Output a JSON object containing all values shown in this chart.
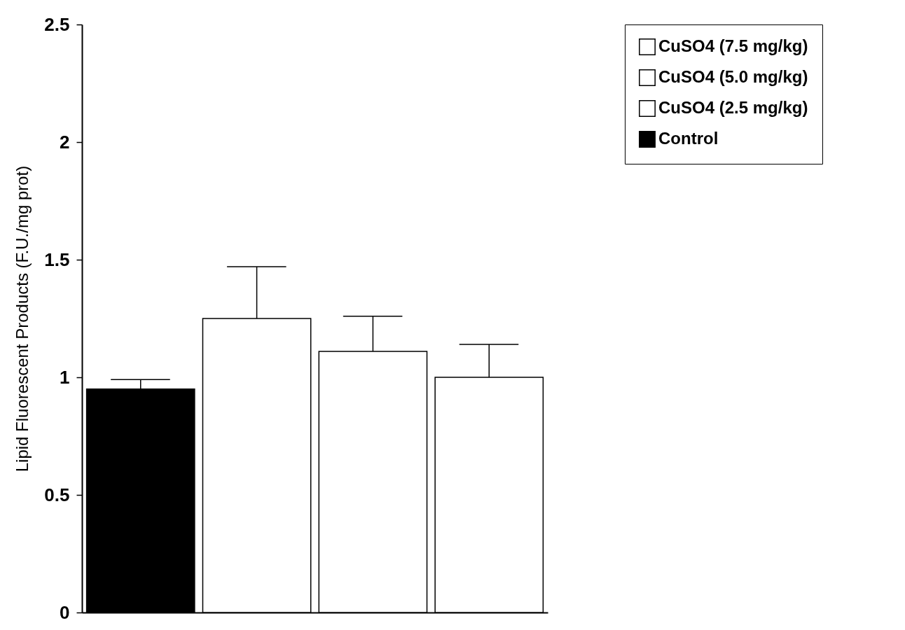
{
  "chart_data": {
    "type": "bar",
    "ylabel": "Lipid Fluorescent Products (F.U./mg prot)",
    "categories": [
      null,
      null,
      null,
      null
    ],
    "series": [
      {
        "name": "CuSO4 (7.5 mg/kg)",
        "color": "#ffffff",
        "values": [
          null,
          null,
          null,
          1.0
        ],
        "errors": [
          null,
          null,
          null,
          [
            1.0,
            1.14
          ]
        ]
      },
      {
        "name": "CuSO4 (5.0 mg/kg)",
        "color": "#ffffff",
        "values": [
          null,
          null,
          1.11,
          null
        ],
        "errors": [
          null,
          null,
          [
            1.11,
            1.26
          ],
          null
        ]
      },
      {
        "name": "CuSO4 (2.5 mg/kg)",
        "color": "#ffffff",
        "values": [
          null,
          1.25,
          null,
          null
        ],
        "errors": [
          null,
          [
            1.25,
            1.47
          ],
          null,
          null
        ]
      },
      {
        "name": "Control",
        "color": "#000000",
        "values": [
          0.95,
          null,
          null,
          null
        ],
        "errors": [
          [
            0.95,
            0.99
          ],
          null,
          null,
          null
        ]
      }
    ],
    "ylim": [
      0,
      2.5
    ],
    "yticks": [
      0,
      0.5,
      1,
      1.5,
      2,
      2.5
    ],
    "grid": false,
    "legend": "right",
    "tick_labels": "y"
  }
}
